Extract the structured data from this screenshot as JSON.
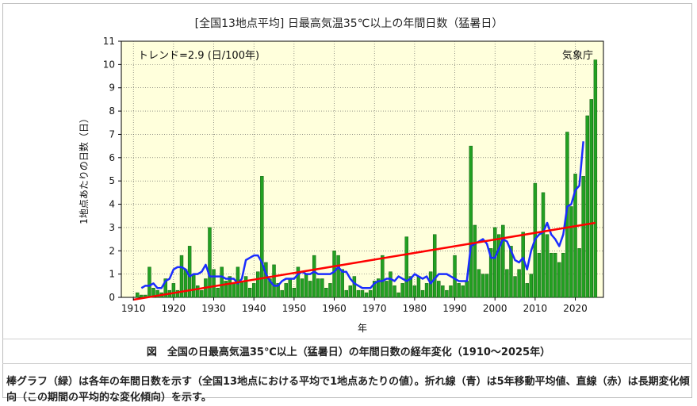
{
  "chart_data": {
    "type": "bar",
    "title": "[全国13地点平均] 日最高気温35℃以上の年間日数（猛暑日）",
    "xlabel": "年",
    "ylabel": "1地点あたりの日数（日）",
    "trend_label": "トレンド=2.9 (日/100年)",
    "source_label": "気象庁",
    "xlim": [
      1907,
      2027
    ],
    "ylim": [
      0,
      11
    ],
    "xticks": [
      1910,
      1920,
      1930,
      1940,
      1950,
      1960,
      1970,
      1980,
      1990,
      2000,
      2010,
      2020
    ],
    "yticks": [
      0,
      1,
      2,
      3,
      4,
      5,
      6,
      7,
      8,
      9,
      10,
      11
    ],
    "grid": true,
    "start_year": 1910,
    "series": [
      {
        "type": "bar",
        "values": [
          0.0,
          0.2,
          0.1,
          0.1,
          1.3,
          0.4,
          0.3,
          0.2,
          0.8,
          0.3,
          0.6,
          0.3,
          1.8,
          1.2,
          2.2,
          1.0,
          0.5,
          0.3,
          0.8,
          3.0,
          1.2,
          0.4,
          1.3,
          0.7,
          0.9,
          0.6,
          1.3,
          0.7,
          0.9,
          0.4,
          0.6,
          1.1,
          5.2,
          1.5,
          0.8,
          1.4,
          0.6,
          0.3,
          0.6,
          0.8,
          0.4,
          1.3,
          0.8,
          1.0,
          0.7,
          1.8,
          0.8,
          0.8,
          0.4,
          0.6,
          2.0,
          1.8,
          1.2,
          0.3,
          0.5,
          0.9,
          0.3,
          0.3,
          0.2,
          0.3,
          0.7,
          0.8,
          1.8,
          0.7,
          1.1,
          0.5,
          0.2,
          0.6,
          2.6,
          0.9,
          0.5,
          0.9,
          0.3,
          0.6,
          1.1,
          2.7,
          0.7,
          0.5,
          0.3,
          0.5,
          1.8,
          0.6,
          0.5,
          0.7,
          6.5,
          3.1,
          1.2,
          1.0,
          1.0,
          2.1,
          3.0,
          2.7,
          3.1,
          1.2,
          2.2,
          0.9,
          1.2,
          2.8,
          0.6,
          1.0,
          4.9,
          1.9,
          4.5,
          2.7,
          1.9,
          1.9,
          1.5,
          1.9,
          7.1,
          3.9,
          5.3,
          2.1,
          5.2,
          7.8,
          8.5,
          10.2
        ],
        "color": "#22a022"
      },
      {
        "type": "line",
        "x_start": 1912,
        "values": [
          0.4,
          0.5,
          0.5,
          0.6,
          0.4,
          0.4,
          0.7,
          0.8,
          1.2,
          1.3,
          1.3,
          1.2,
          0.9,
          1.0,
          1.0,
          1.1,
          1.4,
          0.9,
          0.9,
          0.9,
          0.9,
          0.8,
          0.8,
          0.8,
          0.6,
          0.8,
          1.6,
          1.7,
          1.8,
          1.8,
          1.5,
          1.0,
          0.7,
          0.5,
          0.5,
          0.7,
          0.8,
          0.8,
          0.8,
          1.0,
          1.1,
          1.0,
          1.0,
          1.1,
          1.0,
          1.0,
          1.0,
          1.0,
          1.1,
          1.3,
          1.1,
          1.1,
          0.8,
          0.6,
          0.5,
          0.4,
          0.4,
          0.4,
          0.6,
          0.7,
          0.7,
          0.8,
          0.8,
          0.7,
          0.9,
          0.8,
          0.7,
          0.8,
          1.0,
          0.9,
          0.8,
          0.9,
          0.6,
          0.8,
          1.0,
          1.0,
          1.0,
          0.9,
          0.8,
          0.7,
          0.7,
          0.7,
          2.2,
          2.3,
          2.4,
          2.5,
          2.3,
          1.7,
          1.7,
          2.1,
          2.5,
          2.4,
          2.0,
          1.6,
          1.5,
          1.7,
          1.2,
          2.0,
          2.5,
          2.7,
          2.8,
          3.2,
          2.7,
          2.5,
          2.2,
          2.7,
          3.9,
          4.0,
          4.6,
          4.8,
          6.7
        ],
        "color": "#1a2cff"
      },
      {
        "type": "line",
        "x": [
          1910,
          2025
        ],
        "values": [
          -0.1,
          3.2
        ],
        "color": "#ff0000"
      }
    ]
  },
  "caption": "図　全国の日最高気温35℃以上（猛暑日）の年間日数の経年変化（1910〜2025年）",
  "description": "棒グラフ（緑）は各年の年間日数を示す（全国13地点における平均で1地点あたりの値）。折れ線（青）は5年移動平均値、直線（赤）は長期変化傾向（この期間の平均的な変化傾向）を示す。"
}
